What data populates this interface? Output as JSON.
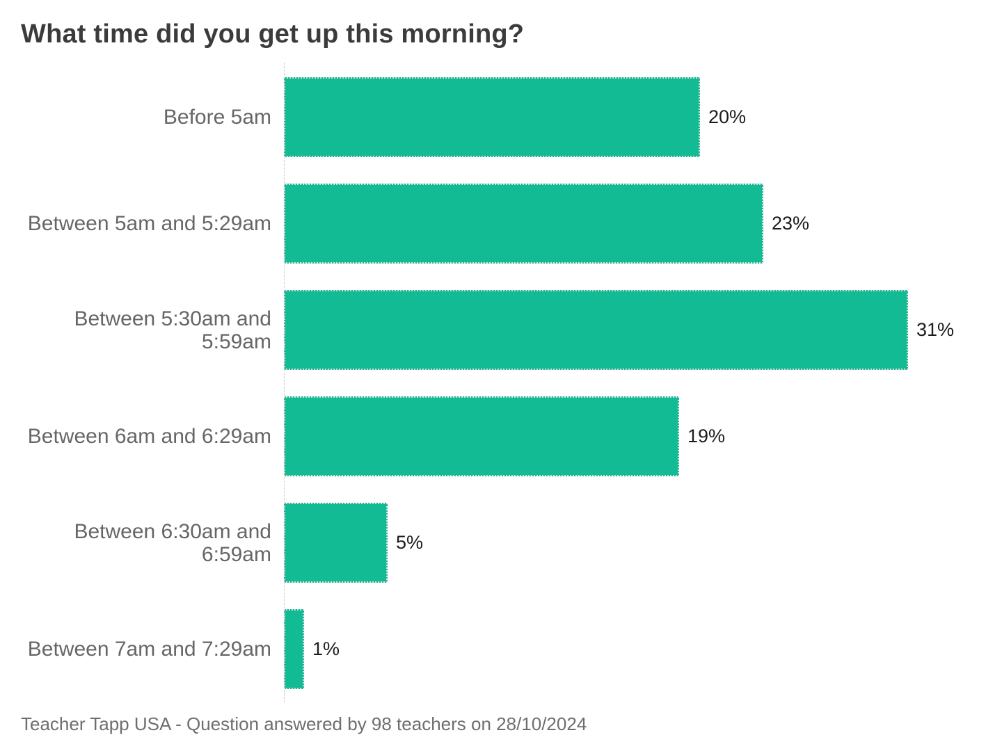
{
  "header": {
    "title": "What time did you get up this morning?"
  },
  "footer": {
    "text": "Teacher Tapp USA - Question answered by 98 teachers on 28/10/2024"
  },
  "colors": {
    "bar_fill": "#12bb94",
    "bar_border": "#dcdcdc",
    "axis_line": "#c9c9c9",
    "title_text": "#3b3b3b",
    "category_text": "#666666",
    "value_text": "#1c1c1c",
    "footer_text": "#6e6e6e",
    "background": "#ffffff"
  },
  "chart_data": {
    "type": "bar",
    "orientation": "horizontal",
    "title": "What time did you get up this morning?",
    "categories": [
      "Before 5am",
      "Between 5am and 5:29am",
      "Between 5:30am and 5:59am",
      "Between 6am and 6:29am",
      "Between 6:30am and 6:59am",
      "Between 7am and 7:29am"
    ],
    "values": [
      20,
      23,
      31,
      19,
      5,
      1
    ],
    "value_labels": [
      "20%",
      "23%",
      "31%",
      "19%",
      "5%",
      "1%"
    ],
    "bar_length_pct": [
      20.4,
      23.5,
      30.6,
      19.4,
      5.1,
      1.0
    ],
    "xlabel": "",
    "ylabel": "",
    "xlim": [
      0,
      31
    ],
    "grid": false,
    "legend": "none",
    "data_labels": "outside-end",
    "source_note": "Teacher Tapp USA - Question answered by 98 teachers on 28/10/2024"
  }
}
